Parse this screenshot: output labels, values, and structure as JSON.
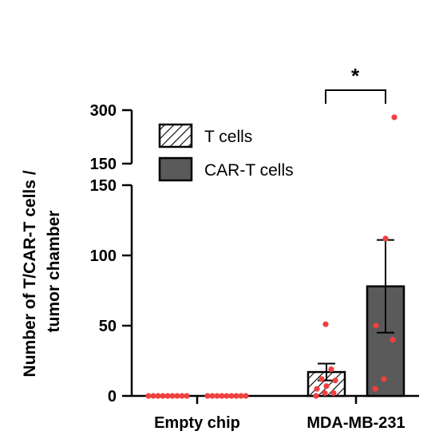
{
  "chart_data": {
    "type": "bar",
    "ylabel": [
      "Number of T/CAR-T cells /",
      "tumor chamber"
    ],
    "categories": [
      "Empty chip",
      "MDA-MB-231"
    ],
    "y_axis_broken": true,
    "ylim_lower": [
      0,
      150
    ],
    "ylim_upper": [
      150,
      300
    ],
    "yticks_lower": [
      "0",
      "50",
      "100",
      "150"
    ],
    "yticks_upper": [
      "150",
      "300"
    ],
    "legend": {
      "placement": "top-left",
      "entries": [
        "T cells",
        "CAR-T cells"
      ]
    },
    "series": [
      {
        "name": "T cells",
        "fill": "hatched",
        "values": [
          0,
          17
        ],
        "error": [
          null,
          6
        ],
        "points": [
          [
            0,
            0,
            0,
            0,
            0,
            0,
            0,
            0,
            0
          ],
          [
            0,
            2,
            2,
            5,
            7,
            11,
            12,
            19,
            51
          ]
        ]
      },
      {
        "name": "CAR-T cells",
        "fill": "#5a5a5a",
        "values": [
          0,
          78
        ],
        "error": [
          null,
          33
        ],
        "points": [
          [
            0,
            0,
            0,
            0,
            0,
            0,
            0,
            0,
            0
          ],
          [
            5,
            12,
            40,
            50,
            112,
            280
          ]
        ]
      }
    ],
    "significance": {
      "label": "*",
      "between": [
        "T cells",
        "CAR-T cells"
      ],
      "category": "MDA-MB-231"
    },
    "point_color": "#f04040"
  }
}
